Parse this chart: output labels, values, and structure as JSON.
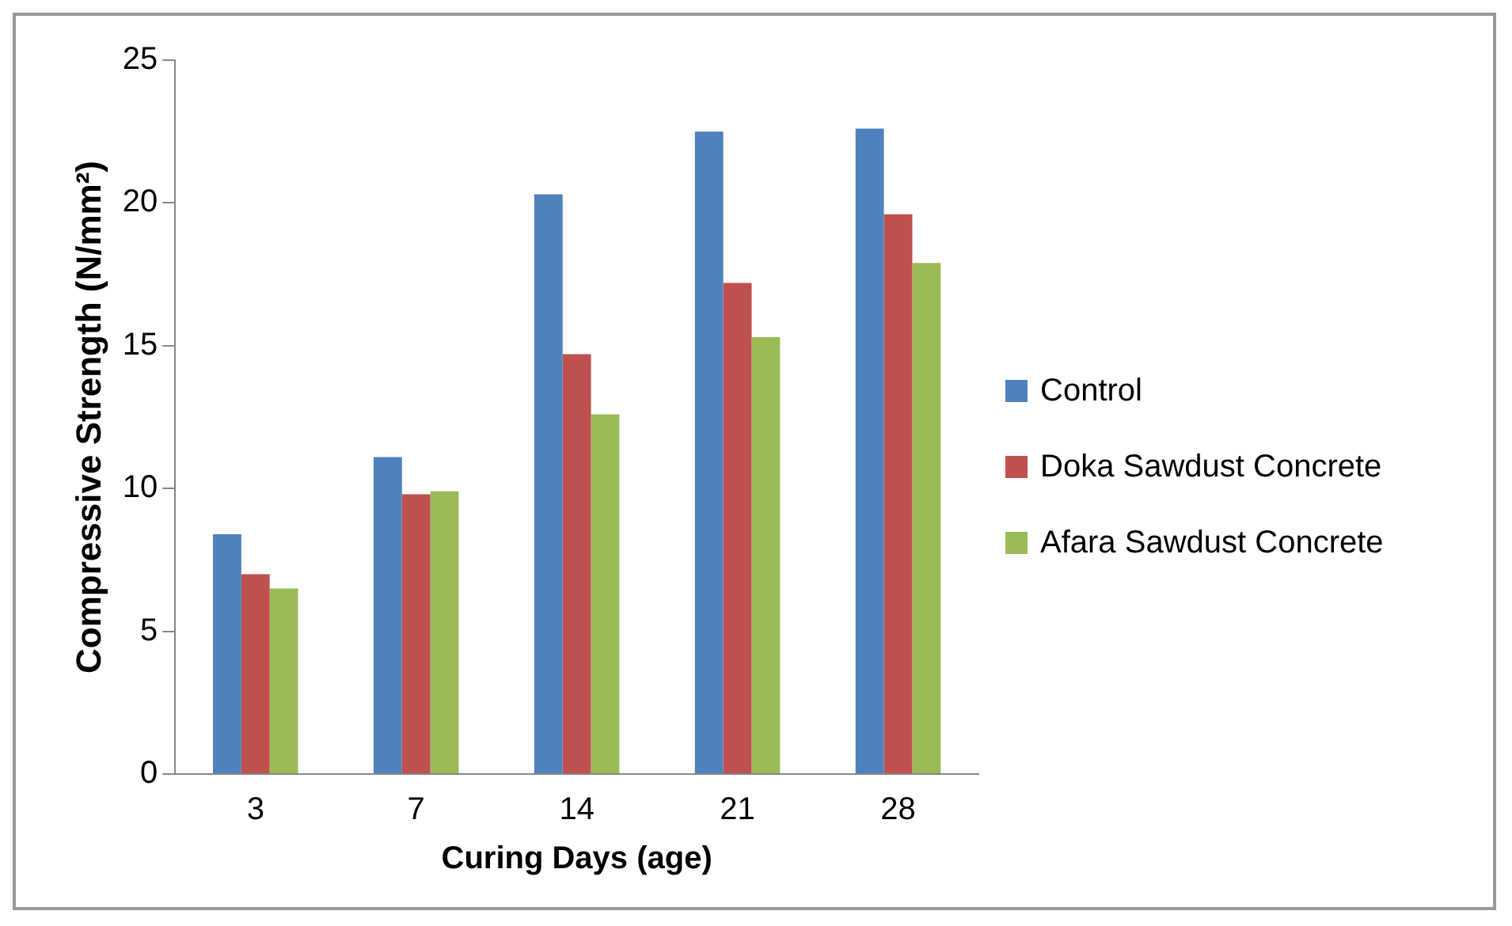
{
  "chart_data": {
    "type": "bar",
    "xlabel": "Curing Days (age)",
    "ylabel": "Compressive Strength (N/mm²)",
    "categories": [
      "3",
      "7",
      "14",
      "21",
      "28"
    ],
    "series": [
      {
        "name": "Control",
        "color": "#4f81bd",
        "values": [
          8.4,
          11.1,
          20.3,
          22.5,
          22.6
        ]
      },
      {
        "name": "Doka Sawdust Concrete",
        "color": "#c0504d",
        "values": [
          7.0,
          9.8,
          14.7,
          17.2,
          19.6
        ]
      },
      {
        "name": "Afara Sawdust Concrete",
        "color": "#9bbb59",
        "values": [
          6.5,
          9.9,
          12.6,
          15.3,
          17.9
        ]
      }
    ],
    "ylim": [
      0,
      25
    ],
    "yticks": [
      0,
      5,
      10,
      15,
      20,
      25
    ],
    "grid": false,
    "legend": "right"
  }
}
